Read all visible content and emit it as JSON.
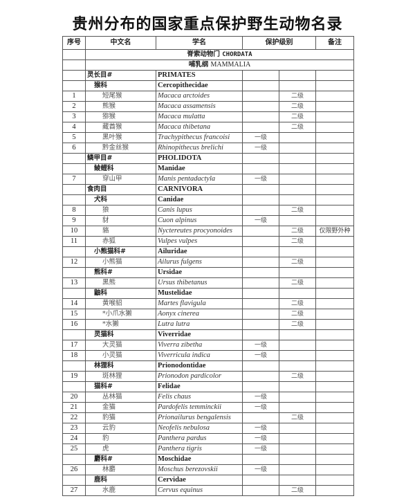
{
  "title": "贵州分布的国家重点保护野生动物名录",
  "headers": {
    "num": "序号",
    "cn": "中文名",
    "sci": "学名",
    "level": "保护级别",
    "note": "备注"
  },
  "phylum": {
    "cn": "脊索动物门",
    "lat": "CHORDATA"
  },
  "class": {
    "cn": "哺乳纲",
    "lat": "MAMMALIA"
  },
  "rows": [
    {
      "type": "order",
      "cn": "灵长目#",
      "sci": "PRIMATES"
    },
    {
      "type": "family",
      "cn": "猴科",
      "sci": "Cercopithecidae"
    },
    {
      "type": "species",
      "num": "1",
      "cn": "短尾猴",
      "sci": "Macaca arctoides",
      "g1": "",
      "g2": "二级",
      "note": ""
    },
    {
      "type": "species",
      "num": "2",
      "cn": "熊猴",
      "sci": "Macaca assamensis",
      "g1": "",
      "g2": "二级",
      "note": ""
    },
    {
      "type": "species",
      "num": "3",
      "cn": "猕猴",
      "sci": "Macaca mulatta",
      "g1": "",
      "g2": "二级",
      "note": ""
    },
    {
      "type": "species",
      "num": "4",
      "cn": "藏酋猴",
      "sci": "Macaca thibetana",
      "g1": "",
      "g2": "二级",
      "note": ""
    },
    {
      "type": "species",
      "num": "5",
      "cn": "黑叶猴",
      "sci": "Trachypithecus francoisi",
      "g1": "一级",
      "g2": "",
      "note": ""
    },
    {
      "type": "species",
      "num": "6",
      "cn": "黔金丝猴",
      "sci": "Rhinopithecus brelichi",
      "g1": "一级",
      "g2": "",
      "note": ""
    },
    {
      "type": "order",
      "cn": "鳞甲目#",
      "sci": "PHOLIDOTA"
    },
    {
      "type": "family",
      "cn": "鲮鲤科",
      "sci": "Manidae"
    },
    {
      "type": "species",
      "num": "7",
      "cn": "穿山甲",
      "sci": "Manis pentadactyla",
      "g1": "一级",
      "g2": "",
      "note": ""
    },
    {
      "type": "order",
      "cn": "食肉目",
      "sci": "CARNIVORA"
    },
    {
      "type": "family",
      "cn": "犬科",
      "sci": "Canidae"
    },
    {
      "type": "species",
      "num": "8",
      "cn": "狼",
      "sci": "Canis lupus",
      "g1": "",
      "g2": "二级",
      "note": ""
    },
    {
      "type": "species",
      "num": "9",
      "cn": "豺",
      "sci": "Cuon alpinus",
      "g1": "一级",
      "g2": "",
      "note": ""
    },
    {
      "type": "species",
      "num": "10",
      "cn": "貉",
      "sci": "Nyctereutes procyonoides",
      "g1": "",
      "g2": "二级",
      "note": "仅限野外种"
    },
    {
      "type": "species",
      "num": "11",
      "cn": "赤狐",
      "sci": "Vulpes vulpes",
      "g1": "",
      "g2": "二级",
      "note": ""
    },
    {
      "type": "family",
      "cn": "小熊猫科#",
      "sci": "Ailuridae"
    },
    {
      "type": "species",
      "num": "12",
      "cn": "小熊猫",
      "sci": "Ailurus fulgens",
      "g1": "",
      "g2": "二级",
      "note": ""
    },
    {
      "type": "family",
      "cn": "熊科#",
      "sci": "Ursidae"
    },
    {
      "type": "species",
      "num": "13",
      "cn": "黑熊",
      "sci": "Ursus thibetanus",
      "g1": "",
      "g2": "二级",
      "note": ""
    },
    {
      "type": "family",
      "cn": "鼬科",
      "sci": "Mustelidae"
    },
    {
      "type": "species",
      "num": "14",
      "cn": "黄喉貂",
      "sci": "Martes flavigula",
      "g1": "",
      "g2": "二级",
      "note": ""
    },
    {
      "type": "species",
      "num": "15",
      "cn": "*小爪水獭",
      "sci": "Aonyx cinerea",
      "g1": "",
      "g2": "二级",
      "note": ""
    },
    {
      "type": "species",
      "num": "16",
      "cn": "*水獭",
      "sci": "Lutra lutra",
      "g1": "",
      "g2": "二级",
      "note": ""
    },
    {
      "type": "family",
      "cn": "灵猫科",
      "sci": "Viverridae"
    },
    {
      "type": "species",
      "num": "17",
      "cn": "大灵猫",
      "sci": "Viverra zibetha",
      "g1": "一级",
      "g2": "",
      "note": ""
    },
    {
      "type": "species",
      "num": "18",
      "cn": "小灵猫",
      "sci": "Viverricula indica",
      "g1": "一级",
      "g2": "",
      "note": ""
    },
    {
      "type": "family",
      "cn": "林狸科",
      "sci": "Prionodontidae"
    },
    {
      "type": "species",
      "num": "19",
      "cn": "斑林狸",
      "sci": "Prionodon pardicolor",
      "g1": "",
      "g2": "二级",
      "note": ""
    },
    {
      "type": "family",
      "cn": "猫科#",
      "sci": "Felidae"
    },
    {
      "type": "species",
      "num": "20",
      "cn": "丛林猫",
      "sci": "Felis chaus",
      "g1": "一级",
      "g2": "",
      "note": ""
    },
    {
      "type": "species",
      "num": "21",
      "cn": "金猫",
      "sci": "Pardofelis temminckii",
      "g1": "一级",
      "g2": "",
      "note": ""
    },
    {
      "type": "species",
      "num": "22",
      "cn": "豹猫",
      "sci": "Prionailurus bengalensis",
      "g1": "",
      "g2": "二级",
      "note": ""
    },
    {
      "type": "species",
      "num": "23",
      "cn": "云豹",
      "sci": "Neofelis nebulosa",
      "g1": "一级",
      "g2": "",
      "note": ""
    },
    {
      "type": "species",
      "num": "24",
      "cn": "豹",
      "sci": "Panthera pardus",
      "g1": "一级",
      "g2": "",
      "note": ""
    },
    {
      "type": "species",
      "num": "25",
      "cn": "虎",
      "sci": "Panthera tigris",
      "g1": "一级",
      "g2": "",
      "note": ""
    },
    {
      "type": "family",
      "cn": "麝科#",
      "sci": "Moschidae"
    },
    {
      "type": "species",
      "num": "26",
      "cn": "林麝",
      "sci": "Moschus berezovskii",
      "g1": "一级",
      "g2": "",
      "note": ""
    },
    {
      "type": "family",
      "cn": "鹿科",
      "sci": "Cervidae"
    },
    {
      "type": "species",
      "num": "27",
      "cn": "水鹿",
      "sci": "Cervus equinus",
      "g1": "",
      "g2": "二级",
      "note": ""
    }
  ]
}
